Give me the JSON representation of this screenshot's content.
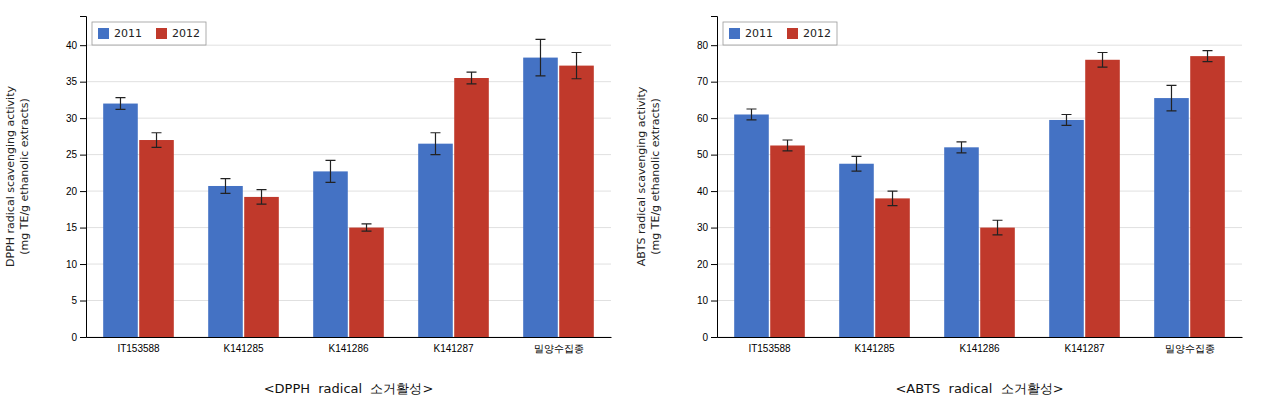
{
  "chart_data": [
    {
      "type": "bar",
      "title": "<DPPH  radical  소거활성>",
      "y_label": "DPPH radical scavenging activity\n(mg TE/g ethanolic extracts)",
      "categories": [
        "IT153588",
        "K141285",
        "K141286",
        "K141287",
        "밀양수집종"
      ],
      "series": [
        {
          "name": "2011",
          "color": "#4472C4",
          "values": [
            32.0,
            20.7,
            22.7,
            26.5,
            38.3
          ],
          "errors": [
            0.8,
            1.0,
            1.5,
            1.5,
            2.5
          ]
        },
        {
          "name": "2012",
          "color": "#C0392B",
          "values": [
            27.0,
            19.2,
            15.0,
            35.5,
            37.2
          ],
          "errors": [
            1.0,
            1.0,
            0.5,
            0.8,
            1.8
          ]
        }
      ],
      "ylim": [
        0,
        44
      ],
      "yticks": [
        0,
        5,
        10,
        15,
        20,
        25,
        30,
        35,
        40
      ],
      "grid": true,
      "legend": "upper left"
    },
    {
      "type": "bar",
      "title": "<ABTS  radical  소거활성>",
      "y_label": "ABTS radical scavenging activity\n(mg TE/g ethanolic extracts)",
      "categories": [
        "IT153588",
        "K141285",
        "K141286",
        "K141287",
        "밀양수집종"
      ],
      "series": [
        {
          "name": "2011",
          "color": "#4472C4",
          "values": [
            61.0,
            47.5,
            52.0,
            59.5,
            65.5
          ],
          "errors": [
            1.5,
            2.0,
            1.5,
            1.5,
            3.5
          ]
        },
        {
          "name": "2012",
          "color": "#C0392B",
          "values": [
            52.5,
            38.0,
            30.0,
            76.0,
            77.0
          ],
          "errors": [
            1.5,
            2.0,
            2.0,
            2.0,
            1.5
          ]
        }
      ],
      "ylim": [
        0,
        88
      ],
      "yticks": [
        0,
        10,
        20,
        30,
        40,
        50,
        60,
        70,
        80
      ],
      "grid": true,
      "legend": "upper left"
    }
  ]
}
